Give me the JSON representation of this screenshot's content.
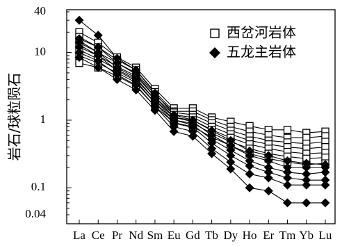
{
  "chart_data": {
    "type": "line",
    "title": "",
    "xlabel": "",
    "ylabel": "岩石/球粒陨石",
    "y_scale": "log",
    "ylim": [
      0.04,
      40
    ],
    "y_ticks": [
      "40",
      "10",
      "1",
      "0.1",
      "0.04"
    ],
    "grid": false,
    "legend_position": "top-right",
    "categories": [
      "La",
      "Ce",
      "Pr",
      "Nd",
      "Sm",
      "Eu",
      "Gd",
      "Tb",
      "Dy",
      "Ho",
      "Er",
      "Tm",
      "Yb",
      "Lu"
    ],
    "groups": [
      {
        "name": "西岔河岩体",
        "marker": "open-square",
        "series": [
          {
            "values": [
              20,
              14,
              8.5,
              6.0,
              2.9,
              1.5,
              1.5,
              1.1,
              0.95,
              0.82,
              0.72,
              0.72,
              0.65,
              0.68
            ]
          },
          {
            "values": [
              17,
              12,
              7.8,
              5.5,
              2.6,
              1.35,
              1.35,
              1.0,
              0.8,
              0.68,
              0.6,
              0.55,
              0.55,
              0.58
            ]
          },
          {
            "values": [
              15,
              10,
              7.0,
              5.0,
              2.4,
              1.3,
              1.2,
              0.9,
              0.7,
              0.58,
              0.5,
              0.47,
              0.45,
              0.48
            ]
          },
          {
            "values": [
              13,
              9.0,
              6.2,
              4.5,
              2.2,
              1.2,
              1.1,
              0.8,
              0.62,
              0.5,
              0.44,
              0.4,
              0.38,
              0.4
            ]
          },
          {
            "values": [
              11,
              8.0,
              5.6,
              4.0,
              2.0,
              1.1,
              1.0,
              0.72,
              0.55,
              0.44,
              0.38,
              0.34,
              0.32,
              0.33
            ]
          },
          {
            "values": [
              9.0,
              7.0,
              5.0,
              3.6,
              1.8,
              1.0,
              0.9,
              0.64,
              0.48,
              0.38,
              0.32,
              0.29,
              0.27,
              0.28
            ]
          },
          {
            "values": [
              7.0,
              6.0,
              4.5,
              3.2,
              1.6,
              0.92,
              0.8,
              0.56,
              0.42,
              0.32,
              0.27,
              0.24,
              0.22,
              0.23
            ]
          }
        ]
      },
      {
        "name": "五龙主岩体",
        "marker": "filled-diamond",
        "series": [
          {
            "values": [
              30,
              18,
              8.2,
              5.5,
              2.5,
              1.2,
              1.0,
              0.7,
              0.5,
              0.35,
              0.3,
              0.25,
              0.23,
              0.22
            ]
          },
          {
            "values": [
              16,
              12,
              7.0,
              4.8,
              2.2,
              1.1,
              0.95,
              0.6,
              0.42,
              0.3,
              0.25,
              0.2,
              0.2,
              0.2
            ]
          },
          {
            "values": [
              14,
              10,
              6.0,
              4.2,
              2.0,
              1.0,
              0.85,
              0.52,
              0.36,
              0.25,
              0.2,
              0.17,
              0.16,
              0.17
            ]
          },
          {
            "values": [
              12,
              9.0,
              5.4,
              3.8,
              1.8,
              0.9,
              0.78,
              0.46,
              0.3,
              0.21,
              0.17,
              0.14,
              0.13,
              0.13
            ]
          },
          {
            "values": [
              10,
              7.5,
              4.7,
              3.3,
              1.6,
              0.8,
              0.68,
              0.38,
              0.24,
              0.16,
              0.14,
              0.11,
              0.11,
              0.11
            ]
          },
          {
            "values": [
              8.5,
              6.0,
              4.0,
              2.8,
              1.4,
              0.68,
              0.58,
              0.32,
              0.19,
              0.1,
              0.09,
              0.06,
              0.06,
              0.06
            ]
          }
        ]
      }
    ]
  }
}
